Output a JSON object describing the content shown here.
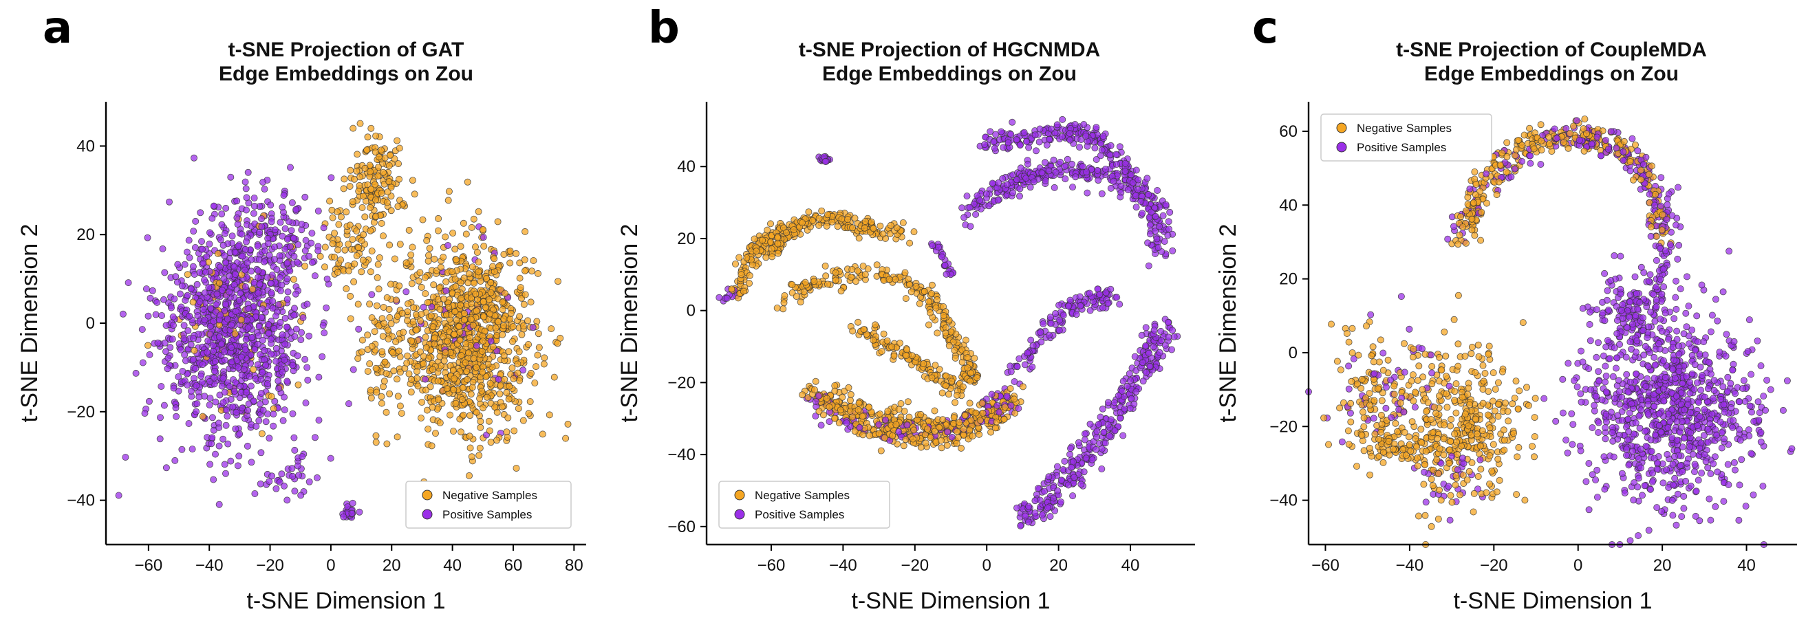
{
  "colors": {
    "negative": "#F5A623",
    "positive": "#9B30E8",
    "edge": "#333333"
  },
  "chart_data": [
    {
      "type": "scatter",
      "panel": "a",
      "title": [
        "t-SNE Projection of GAT",
        "Edge Embeddings on Zou"
      ],
      "xlabel": "t-SNE Dimension 1",
      "ylabel": "t-SNE Dimension 2",
      "xlim": [
        -74,
        84
      ],
      "ylim": [
        -50,
        50
      ],
      "xticks": [
        -60,
        -40,
        -20,
        0,
        20,
        40,
        60,
        80
      ],
      "yticks": [
        -40,
        -20,
        0,
        20,
        40
      ],
      "legend": {
        "position": "lower-right",
        "entries": [
          "Negative Samples",
          "Positive Samples"
        ]
      },
      "series": [
        {
          "name": "Negative Samples",
          "color": "#F5A623",
          "clusters": [
            {
              "cx": 45,
              "cy": -3,
              "rx": 22,
              "ry": 22,
              "n": 900
            },
            {
              "cx": 15,
              "cy": 32,
              "rx": 9,
              "ry": 10,
              "n": 140
            },
            {
              "cx": 5,
              "cy": 18,
              "rx": 10,
              "ry": 10,
              "n": 70
            },
            {
              "cx": 18,
              "cy": -5,
              "rx": 8,
              "ry": 20,
              "n": 80
            },
            {
              "cx": -30,
              "cy": 0,
              "rx": 25,
              "ry": 22,
              "n": 70
            }
          ]
        },
        {
          "name": "Positive Samples",
          "color": "#9B30E8",
          "clusters": [
            {
              "cx": -32,
              "cy": -2,
              "rx": 24,
              "ry": 24,
              "n": 1000
            },
            {
              "cx": -20,
              "cy": 18,
              "rx": 20,
              "ry": 12,
              "n": 150
            },
            {
              "cx": 6,
              "cy": -43,
              "rx": 2.5,
              "ry": 2,
              "n": 25
            },
            {
              "cx": 45,
              "cy": 0,
              "rx": 22,
              "ry": 22,
              "n": 40
            },
            {
              "cx": -15,
              "cy": -35,
              "rx": 12,
              "ry": 5,
              "n": 30
            }
          ]
        }
      ]
    },
    {
      "type": "scatter",
      "panel": "b",
      "title": [
        "t-SNE Projection of HGCNMDA",
        "Edge Embeddings on Zou"
      ],
      "xlabel": "t-SNE Dimension 1",
      "ylabel": "t-SNE Dimension 2",
      "xlim": [
        -78,
        58
      ],
      "ylim": [
        -65,
        58
      ],
      "xticks": [
        -60,
        -40,
        -20,
        0,
        20,
        40
      ],
      "yticks": [
        -60,
        -40,
        -20,
        0,
        20,
        40
      ],
      "legend": {
        "position": "lower-left",
        "entries": [
          "Negative Samples",
          "Positive Samples"
        ]
      },
      "series": [
        {
          "name": "Negative Samples",
          "color": "#F5A623",
          "curves": [
            {
              "pts": [
                [
                  -70,
                  3
                ],
                [
                  -66,
                  15
                ],
                [
                  -58,
                  22
                ],
                [
                  -46,
                  26
                ],
                [
                  -35,
                  24
                ],
                [
                  -22,
                  21
                ]
              ],
              "n": 230,
              "w": 2.2
            },
            {
              "pts": [
                [
                  -58,
                  2
                ],
                [
                  -48,
                  8
                ],
                [
                  -35,
                  11
                ],
                [
                  -22,
                  8
                ],
                [
                  -15,
                  2
                ],
                [
                  -10,
                  -6
                ],
                [
                  -5,
                  -15
                ],
                [
                  -4,
                  -20
                ]
              ],
              "n": 230,
              "w": 2.2
            },
            {
              "pts": [
                [
                  -36,
                  -4
                ],
                [
                  -28,
                  -10
                ],
                [
                  -20,
                  -14
                ],
                [
                  -14,
                  -18
                ],
                [
                  -8,
                  -22
                ]
              ],
              "n": 120,
              "w": 2.0
            },
            {
              "pts": [
                [
                  -50,
                  -22
                ],
                [
                  -40,
                  -26
                ],
                [
                  -28,
                  -30
                ],
                [
                  -15,
                  -32
                ],
                [
                  -2,
                  -30
                ],
                [
                  8,
                  -25
                ]
              ],
              "n": 260,
              "w": 3.0
            },
            {
              "pts": [
                [
                  -45,
                  -28
                ],
                [
                  -32,
                  -34
                ],
                [
                  -18,
                  -36
                ],
                [
                  -5,
                  -34
                ],
                [
                  5,
                  -29
                ]
              ],
              "n": 160,
              "w": 2.5
            },
            {
              "pts": [
                [
                  -60,
                  15
                ],
                [
                  -55,
                  22
                ],
                [
                  -50,
                  25
                ]
              ],
              "n": 60,
              "w": 1.5
            }
          ]
        },
        {
          "name": "Positive Samples",
          "color": "#9B30E8",
          "curves": [
            {
              "pts": [
                [
                  -5,
                  26
                ],
                [
                  2,
                  33
                ],
                [
                  10,
                  37
                ],
                [
                  20,
                  39
                ],
                [
                  30,
                  38
                ],
                [
                  42,
                  34
                ],
                [
                  48,
                  26
                ],
                [
                  48,
                  16
                ]
              ],
              "n": 300,
              "w": 3.0
            },
            {
              "pts": [
                [
                  0,
                  47
                ],
                [
                  10,
                  48
                ],
                [
                  22,
                  50
                ],
                [
                  30,
                  48
                ],
                [
                  38,
                  40
                ],
                [
                  45,
                  28
                ]
              ],
              "n": 220,
              "w": 2.5
            },
            {
              "pts": [
                [
                  10,
                  -58
                ],
                [
                  18,
                  -52
                ],
                [
                  28,
                  -40
                ],
                [
                  36,
                  -28
                ],
                [
                  44,
                  -14
                ],
                [
                  50,
                  -6
                ]
              ],
              "n": 330,
              "w": 3.5
            },
            {
              "pts": [
                [
                  0,
                  -28
                ],
                [
                  8,
                  -18
                ],
                [
                  15,
                  -8
                ],
                [
                  22,
                  0
                ],
                [
                  30,
                  3
                ],
                [
                  35,
                  4
                ]
              ],
              "n": 150,
              "w": 2.5
            },
            {
              "pts": [
                [
                  -50,
                  -25
                ],
                [
                  -35,
                  -32
                ],
                [
                  -20,
                  -34
                ],
                [
                  -5,
                  -32
                ],
                [
                  8,
                  -26
                ]
              ],
              "n": 90,
              "w": 3.0
            },
            {
              "pts": [
                [
                  -46,
                  42
                ],
                [
                  -44,
                  42
                ]
              ],
              "n": 20,
              "w": 0.6
            },
            {
              "pts": [
                [
                  -15,
                  20
                ],
                [
                  -12,
                  14
                ],
                [
                  -10,
                  10
                ]
              ],
              "n": 25,
              "w": 1.0
            },
            {
              "pts": [
                [
                  -74,
                  3
                ],
                [
                  -68,
                  6
                ]
              ],
              "n": 10,
              "w": 1.0
            }
          ]
        }
      ]
    },
    {
      "type": "scatter",
      "panel": "c",
      "title": [
        "t-SNE Projection of CoupleMDA",
        "Edge Embeddings on Zou"
      ],
      "xlabel": "t-SNE Dimension 1",
      "ylabel": "t-SNE Dimension 2",
      "xlim": [
        -64,
        52
      ],
      "ylim": [
        -52,
        68
      ],
      "xticks": [
        -60,
        -40,
        -20,
        0,
        20,
        40
      ],
      "yticks": [
        -40,
        -20,
        0,
        20,
        40,
        60
      ],
      "legend": {
        "position": "top-left",
        "entries": [
          "Negative Samples",
          "Positive Samples"
        ]
      },
      "series": [
        {
          "name": "Negative Samples",
          "color": "#F5A623",
          "clusters": [
            {
              "cx": -28,
              "cy": -20,
              "rx": 16,
              "ry": 22,
              "n": 380
            },
            {
              "cx": -50,
              "cy": -10,
              "rx": 8,
              "ry": 18,
              "n": 90
            },
            {
              "cx": -45,
              "cy": -25,
              "rx": 10,
              "ry": 6,
              "n": 60
            }
          ],
          "curves": [
            {
              "pts": [
                [
                  -28,
                  30
                ],
                [
                  -24,
                  42
                ],
                [
                  -18,
                  52
                ],
                [
                  -8,
                  58
                ],
                [
                  2,
                  59
                ],
                [
                  10,
                  56
                ]
              ],
              "n": 220,
              "w": 3.0
            },
            {
              "pts": [
                [
                  10,
                  56
                ],
                [
                  16,
                  50
                ],
                [
                  18,
                  40
                ],
                [
                  20,
                  30
                ]
              ],
              "n": 60,
              "w": 2.5
            }
          ]
        },
        {
          "name": "Positive Samples",
          "color": "#9B30E8",
          "curves": [
            {
              "pts": [
                [
                  -6,
                  58
                ],
                [
                  4,
                  58
                ],
                [
                  14,
                  52
                ],
                [
                  20,
                  40
                ],
                [
                  20,
                  26
                ],
                [
                  18,
                  12
                ]
              ],
              "n": 200,
              "w": 3.0
            },
            {
              "pts": [
                [
                  -28,
                  30
                ],
                [
                  -22,
                  46
                ],
                [
                  -12,
                  55
                ]
              ],
              "n": 40,
              "w": 3.0
            }
          ],
          "clusters": [
            {
              "cx": 22,
              "cy": -15,
              "rx": 20,
              "ry": 26,
              "n": 900
            },
            {
              "cx": 12,
              "cy": 12,
              "rx": 8,
              "ry": 10,
              "n": 100
            },
            {
              "cx": -45,
              "cy": -10,
              "rx": 14,
              "ry": 20,
              "n": 45
            },
            {
              "cx": -30,
              "cy": -35,
              "rx": 10,
              "ry": 10,
              "n": 30
            }
          ]
        }
      ]
    }
  ]
}
